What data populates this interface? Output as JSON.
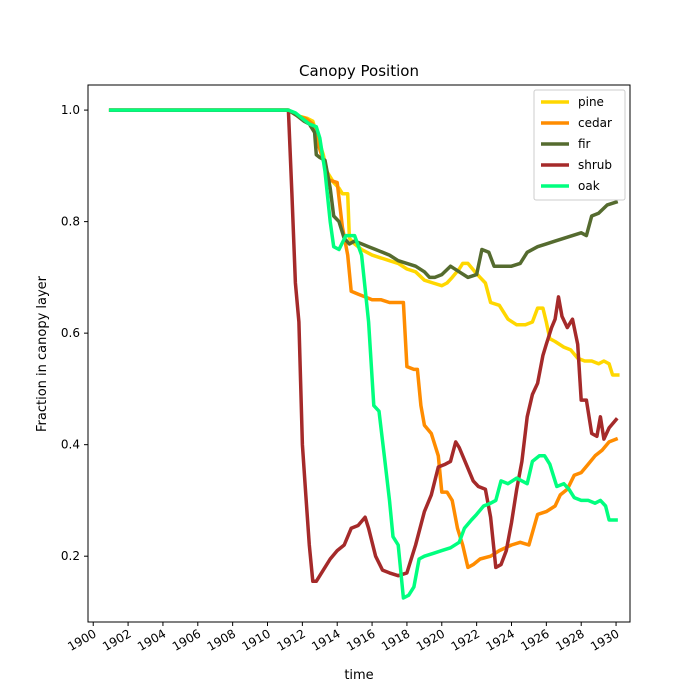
{
  "chart_data": {
    "type": "line",
    "title": "Canopy Position",
    "xlabel": "time",
    "ylabel": "Fraction in canopy layer",
    "xlim": [
      1899.7,
      1930.8
    ],
    "ylim": [
      0.082,
      1.045
    ],
    "x_ticks": [
      "1900",
      "1902",
      "1904",
      "1906",
      "1908",
      "1910",
      "1912",
      "1914",
      "1916",
      "1918",
      "1920",
      "1922",
      "1924",
      "1926",
      "1928",
      "1930"
    ],
    "y_ticks": [
      "0.2",
      "0.4",
      "0.6",
      "0.8",
      "1.0"
    ],
    "legend_position": "upper right",
    "series": [
      {
        "name": "pine",
        "color": "#ffd700",
        "points": [
          [
            1901,
            1.0
          ],
          [
            1911.2,
            1.0
          ],
          [
            1911.7,
            0.99
          ],
          [
            1912.3,
            0.985
          ],
          [
            1912.6,
            0.98
          ],
          [
            1912.9,
            0.95
          ],
          [
            1913.2,
            0.92
          ],
          [
            1913.4,
            0.89
          ],
          [
            1913.8,
            0.87
          ],
          [
            1914.1,
            0.86
          ],
          [
            1914.3,
            0.85
          ],
          [
            1914.6,
            0.85
          ],
          [
            1914.7,
            0.77
          ],
          [
            1915.0,
            0.76
          ],
          [
            1915.4,
            0.75
          ],
          [
            1916.0,
            0.74
          ],
          [
            1916.5,
            0.735
          ],
          [
            1917.0,
            0.73
          ],
          [
            1917.5,
            0.725
          ],
          [
            1918.0,
            0.715
          ],
          [
            1918.5,
            0.71
          ],
          [
            1919.0,
            0.695
          ],
          [
            1919.5,
            0.69
          ],
          [
            1920.0,
            0.685
          ],
          [
            1920.3,
            0.69
          ],
          [
            1920.6,
            0.7
          ],
          [
            1921.0,
            0.715
          ],
          [
            1921.2,
            0.725
          ],
          [
            1921.5,
            0.725
          ],
          [
            1921.9,
            0.71
          ],
          [
            1922.2,
            0.7
          ],
          [
            1922.5,
            0.69
          ],
          [
            1922.8,
            0.655
          ],
          [
            1923.3,
            0.65
          ],
          [
            1923.8,
            0.625
          ],
          [
            1924.3,
            0.615
          ],
          [
            1924.8,
            0.615
          ],
          [
            1925.2,
            0.62
          ],
          [
            1925.5,
            0.645
          ],
          [
            1925.8,
            0.645
          ],
          [
            1926.0,
            0.62
          ],
          [
            1926.2,
            0.59
          ],
          [
            1926.5,
            0.585
          ],
          [
            1927.0,
            0.575
          ],
          [
            1927.4,
            0.57
          ],
          [
            1927.8,
            0.555
          ],
          [
            1928.2,
            0.55
          ],
          [
            1928.6,
            0.55
          ],
          [
            1929.0,
            0.545
          ],
          [
            1929.3,
            0.55
          ],
          [
            1929.6,
            0.545
          ],
          [
            1929.8,
            0.525
          ],
          [
            1930.1,
            0.525
          ]
        ]
      },
      {
        "name": "cedar",
        "color": "#ff8c00",
        "points": [
          [
            1901,
            1.0
          ],
          [
            1911.2,
            1.0
          ],
          [
            1911.7,
            0.99
          ],
          [
            1912.2,
            0.985
          ],
          [
            1912.6,
            0.975
          ],
          [
            1912.9,
            0.94
          ],
          [
            1913.3,
            0.9
          ],
          [
            1913.5,
            0.875
          ],
          [
            1914.0,
            0.87
          ],
          [
            1914.3,
            0.79
          ],
          [
            1914.6,
            0.74
          ],
          [
            1914.8,
            0.675
          ],
          [
            1915.2,
            0.67
          ],
          [
            1915.6,
            0.665
          ],
          [
            1916.0,
            0.66
          ],
          [
            1916.5,
            0.66
          ],
          [
            1917.0,
            0.655
          ],
          [
            1917.5,
            0.655
          ],
          [
            1917.8,
            0.655
          ],
          [
            1918.0,
            0.54
          ],
          [
            1918.4,
            0.535
          ],
          [
            1918.6,
            0.535
          ],
          [
            1918.8,
            0.47
          ],
          [
            1919.0,
            0.435
          ],
          [
            1919.4,
            0.42
          ],
          [
            1919.8,
            0.38
          ],
          [
            1920.0,
            0.315
          ],
          [
            1920.3,
            0.315
          ],
          [
            1920.6,
            0.3
          ],
          [
            1920.9,
            0.25
          ],
          [
            1921.2,
            0.22
          ],
          [
            1921.5,
            0.18
          ],
          [
            1921.8,
            0.185
          ],
          [
            1922.2,
            0.195
          ],
          [
            1922.8,
            0.2
          ],
          [
            1923.3,
            0.21
          ],
          [
            1924.0,
            0.22
          ],
          [
            1924.5,
            0.225
          ],
          [
            1925.0,
            0.22
          ],
          [
            1925.5,
            0.275
          ],
          [
            1926.0,
            0.28
          ],
          [
            1926.5,
            0.29
          ],
          [
            1926.8,
            0.31
          ],
          [
            1927.2,
            0.32
          ],
          [
            1927.6,
            0.345
          ],
          [
            1928.0,
            0.35
          ],
          [
            1928.4,
            0.365
          ],
          [
            1928.8,
            0.38
          ],
          [
            1929.2,
            0.39
          ],
          [
            1929.6,
            0.405
          ],
          [
            1930.0,
            0.41
          ]
        ]
      },
      {
        "name": "fir",
        "color": "#556b2f",
        "points": [
          [
            1901,
            1.0
          ],
          [
            1911.2,
            1.0
          ],
          [
            1911.7,
            0.99
          ],
          [
            1912.1,
            0.98
          ],
          [
            1912.4,
            0.975
          ],
          [
            1912.7,
            0.96
          ],
          [
            1912.8,
            0.92
          ],
          [
            1913.0,
            0.915
          ],
          [
            1913.3,
            0.91
          ],
          [
            1913.6,
            0.86
          ],
          [
            1913.8,
            0.81
          ],
          [
            1914.1,
            0.8
          ],
          [
            1914.4,
            0.77
          ],
          [
            1914.7,
            0.76
          ],
          [
            1915.0,
            0.765
          ],
          [
            1915.4,
            0.76
          ],
          [
            1915.8,
            0.755
          ],
          [
            1916.2,
            0.75
          ],
          [
            1916.6,
            0.745
          ],
          [
            1917.0,
            0.74
          ],
          [
            1917.5,
            0.73
          ],
          [
            1918.0,
            0.725
          ],
          [
            1918.5,
            0.72
          ],
          [
            1919.0,
            0.71
          ],
          [
            1919.3,
            0.7
          ],
          [
            1919.6,
            0.7
          ],
          [
            1920.0,
            0.705
          ],
          [
            1920.5,
            0.72
          ],
          [
            1921.0,
            0.71
          ],
          [
            1921.5,
            0.7
          ],
          [
            1922.0,
            0.705
          ],
          [
            1922.3,
            0.75
          ],
          [
            1922.7,
            0.745
          ],
          [
            1923.0,
            0.72
          ],
          [
            1923.5,
            0.72
          ],
          [
            1924.0,
            0.72
          ],
          [
            1924.5,
            0.725
          ],
          [
            1924.9,
            0.745
          ],
          [
            1925.5,
            0.755
          ],
          [
            1926.0,
            0.76
          ],
          [
            1926.5,
            0.765
          ],
          [
            1927.0,
            0.77
          ],
          [
            1927.5,
            0.775
          ],
          [
            1928.0,
            0.78
          ],
          [
            1928.3,
            0.775
          ],
          [
            1928.6,
            0.81
          ],
          [
            1929.0,
            0.815
          ],
          [
            1929.5,
            0.83
          ],
          [
            1930.0,
            0.835
          ]
        ]
      },
      {
        "name": "shrub",
        "color": "#a52a2a",
        "points": [
          [
            1901,
            1.0
          ],
          [
            1911.2,
            1.0
          ],
          [
            1911.4,
            0.85
          ],
          [
            1911.6,
            0.69
          ],
          [
            1911.8,
            0.62
          ],
          [
            1912.0,
            0.4
          ],
          [
            1912.2,
            0.31
          ],
          [
            1912.4,
            0.22
          ],
          [
            1912.6,
            0.155
          ],
          [
            1912.8,
            0.155
          ],
          [
            1913.2,
            0.175
          ],
          [
            1913.6,
            0.195
          ],
          [
            1914.0,
            0.21
          ],
          [
            1914.4,
            0.22
          ],
          [
            1914.8,
            0.25
          ],
          [
            1915.2,
            0.255
          ],
          [
            1915.6,
            0.27
          ],
          [
            1915.8,
            0.25
          ],
          [
            1916.2,
            0.2
          ],
          [
            1916.6,
            0.175
          ],
          [
            1917.0,
            0.17
          ],
          [
            1917.5,
            0.165
          ],
          [
            1918.0,
            0.17
          ],
          [
            1918.5,
            0.22
          ],
          [
            1919.0,
            0.28
          ],
          [
            1919.4,
            0.31
          ],
          [
            1919.8,
            0.36
          ],
          [
            1920.2,
            0.365
          ],
          [
            1920.5,
            0.37
          ],
          [
            1920.8,
            0.405
          ],
          [
            1921.0,
            0.395
          ],
          [
            1921.4,
            0.365
          ],
          [
            1921.8,
            0.335
          ],
          [
            1922.1,
            0.325
          ],
          [
            1922.5,
            0.32
          ],
          [
            1922.8,
            0.27
          ],
          [
            1923.1,
            0.18
          ],
          [
            1923.4,
            0.185
          ],
          [
            1923.7,
            0.21
          ],
          [
            1924.0,
            0.26
          ],
          [
            1924.3,
            0.32
          ],
          [
            1924.6,
            0.37
          ],
          [
            1924.9,
            0.45
          ],
          [
            1925.2,
            0.49
          ],
          [
            1925.5,
            0.51
          ],
          [
            1925.8,
            0.56
          ],
          [
            1926.0,
            0.58
          ],
          [
            1926.3,
            0.61
          ],
          [
            1926.5,
            0.625
          ],
          [
            1926.7,
            0.665
          ],
          [
            1926.9,
            0.63
          ],
          [
            1927.2,
            0.61
          ],
          [
            1927.5,
            0.625
          ],
          [
            1927.8,
            0.58
          ],
          [
            1928.0,
            0.48
          ],
          [
            1928.3,
            0.48
          ],
          [
            1928.6,
            0.42
          ],
          [
            1928.9,
            0.415
          ],
          [
            1929.1,
            0.45
          ],
          [
            1929.3,
            0.41
          ],
          [
            1929.6,
            0.43
          ],
          [
            1930.0,
            0.445
          ]
        ]
      },
      {
        "name": "oak",
        "color": "#00ff7f",
        "points": [
          [
            1901,
            1.0
          ],
          [
            1911.2,
            1.0
          ],
          [
            1911.6,
            0.995
          ],
          [
            1912.0,
            0.985
          ],
          [
            1912.4,
            0.975
          ],
          [
            1912.8,
            0.97
          ],
          [
            1913.0,
            0.95
          ],
          [
            1913.3,
            0.89
          ],
          [
            1913.6,
            0.8
          ],
          [
            1913.8,
            0.755
          ],
          [
            1914.1,
            0.75
          ],
          [
            1914.5,
            0.775
          ],
          [
            1915.0,
            0.775
          ],
          [
            1915.4,
            0.74
          ],
          [
            1915.8,
            0.62
          ],
          [
            1916.1,
            0.47
          ],
          [
            1916.4,
            0.46
          ],
          [
            1916.7,
            0.38
          ],
          [
            1917.0,
            0.3
          ],
          [
            1917.2,
            0.235
          ],
          [
            1917.5,
            0.22
          ],
          [
            1917.8,
            0.125
          ],
          [
            1918.1,
            0.13
          ],
          [
            1918.4,
            0.145
          ],
          [
            1918.7,
            0.195
          ],
          [
            1919.0,
            0.2
          ],
          [
            1919.5,
            0.205
          ],
          [
            1920.0,
            0.21
          ],
          [
            1920.5,
            0.215
          ],
          [
            1921.0,
            0.225
          ],
          [
            1921.3,
            0.25
          ],
          [
            1921.7,
            0.265
          ],
          [
            1922.0,
            0.275
          ],
          [
            1922.4,
            0.29
          ],
          [
            1922.8,
            0.295
          ],
          [
            1923.1,
            0.3
          ],
          [
            1923.4,
            0.335
          ],
          [
            1923.8,
            0.33
          ],
          [
            1924.3,
            0.34
          ],
          [
            1924.6,
            0.335
          ],
          [
            1924.9,
            0.33
          ],
          [
            1925.2,
            0.37
          ],
          [
            1925.6,
            0.38
          ],
          [
            1925.9,
            0.38
          ],
          [
            1926.2,
            0.365
          ],
          [
            1926.6,
            0.325
          ],
          [
            1927.0,
            0.33
          ],
          [
            1927.3,
            0.32
          ],
          [
            1927.6,
            0.305
          ],
          [
            1928.0,
            0.3
          ],
          [
            1928.4,
            0.3
          ],
          [
            1928.8,
            0.295
          ],
          [
            1929.1,
            0.3
          ],
          [
            1929.4,
            0.29
          ],
          [
            1929.6,
            0.265
          ],
          [
            1930.0,
            0.265
          ]
        ]
      }
    ]
  }
}
